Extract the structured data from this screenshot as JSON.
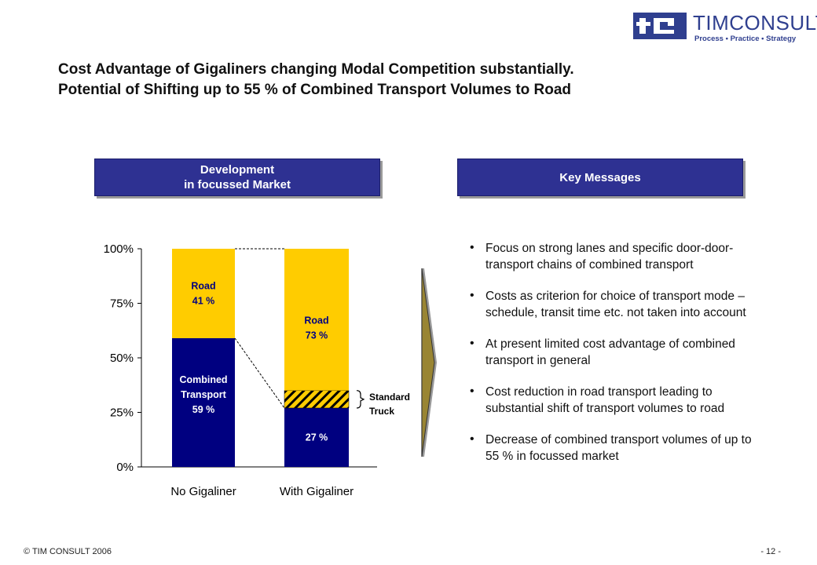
{
  "brand": {
    "name_bold": "TIM",
    "name_light": "CONSULT",
    "tagline": "Process • Practice • Strategy",
    "color": "#2f3f8f"
  },
  "title": {
    "line1": "Cost Advantage of Gigaliners changing Modal Competition substantially.",
    "line2": "Potential of Shifting up to 55 % of Combined Transport Volumes to Road"
  },
  "left_header": {
    "line1": "Development",
    "line2": "in focussed Market"
  },
  "right_header": {
    "label": "Key Messages"
  },
  "key_messages": [
    "Focus on strong lanes and specific door-door-transport chains of combined transport",
    "Costs as criterion for choice of transport mode – schedule, transit time etc. not taken into account",
    "At present limited cost advantage of combined transport in general",
    "Cost reduction in road transport leading to substantial shift of transport volumes to road",
    "Decrease of combined transport volumes of up to 55 % in focussed market"
  ],
  "footer": {
    "copyright": "© TIM CONSULT 2006",
    "page": "- 12 -"
  },
  "colors": {
    "header_bg": "#2e3192",
    "combined": "#000080",
    "road": "#ffcc00",
    "arrow": "#ffcc00"
  },
  "chart_data": {
    "type": "bar",
    "stacked": true,
    "categories": [
      "No Gigaliner",
      "With Gigaliner"
    ],
    "ylim": [
      0,
      100
    ],
    "yticks": [
      "0%",
      "25%",
      "50%",
      "75%",
      "100%"
    ],
    "series": [
      {
        "name": "Combined Transport",
        "values": [
          59,
          27
        ],
        "labels": [
          "Combined\nTransport\n59 %",
          "27 %"
        ]
      },
      {
        "name": "Standard Truck",
        "values": [
          0,
          8
        ],
        "labels": [
          "",
          ""
        ]
      },
      {
        "name": "Road",
        "values": [
          41,
          65
        ],
        "labels": [
          "Road\n41 %",
          "Road\n73 %"
        ]
      }
    ],
    "annotations": [
      {
        "text": "Standard\nTruck",
        "target": "With Gigaliner"
      }
    ]
  }
}
